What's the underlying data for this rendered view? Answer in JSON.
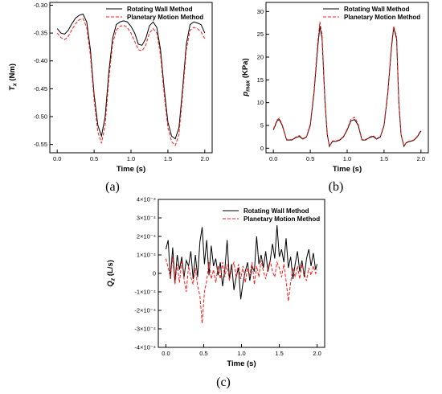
{
  "chart_data": [
    {
      "type": "line",
      "panel_label": "(a)",
      "xlabel": "Time (s)",
      "ylabel": "T",
      "ylabel_sub": "x",
      "ylabel_unit": " (Nm)",
      "xlim": [
        -0.1,
        2.1
      ],
      "ylim": [
        -0.565,
        -0.295
      ],
      "xticks": [
        0.0,
        0.5,
        1.0,
        1.5,
        2.0
      ],
      "xtick_labels": [
        "0.0",
        "0.5",
        "1.0",
        "1.5",
        "2.0"
      ],
      "yticks": [
        -0.3,
        -0.35,
        -0.4,
        -0.45,
        -0.5,
        -0.55
      ],
      "ytick_labels": [
        "-0.30",
        "-0.35",
        "-0.40",
        "-0.45",
        "-0.50",
        "-0.55"
      ],
      "legend_position": "top-right",
      "series": [
        {
          "name": "Rotating Wall Method",
          "color": "#000000",
          "style": "solid",
          "x": [
            0,
            0.05,
            0.1,
            0.15,
            0.2,
            0.25,
            0.3,
            0.35,
            0.4,
            0.45,
            0.5,
            0.55,
            0.6,
            0.65,
            0.7,
            0.75,
            0.8,
            0.85,
            0.9,
            0.95,
            1.0,
            1.05,
            1.1,
            1.15,
            1.2,
            1.25,
            1.3,
            1.35,
            1.4,
            1.45,
            1.5,
            1.55,
            1.6,
            1.65,
            1.7,
            1.75,
            1.8,
            1.85,
            1.9,
            1.95,
            2.0
          ],
          "y": [
            -0.342,
            -0.35,
            -0.352,
            -0.345,
            -0.333,
            -0.323,
            -0.318,
            -0.316,
            -0.33,
            -0.38,
            -0.46,
            -0.515,
            -0.535,
            -0.5,
            -0.42,
            -0.36,
            -0.335,
            -0.33,
            -0.328,
            -0.33,
            -0.338,
            -0.35,
            -0.37,
            -0.372,
            -0.36,
            -0.337,
            -0.33,
            -0.34,
            -0.38,
            -0.45,
            -0.51,
            -0.535,
            -0.54,
            -0.52,
            -0.45,
            -0.37,
            -0.335,
            -0.33,
            -0.332,
            -0.335,
            -0.35
          ]
        },
        {
          "name": "Planetary Motion Method",
          "color": "#ff1a1a",
          "style": "dashed",
          "x": [
            0,
            0.05,
            0.1,
            0.15,
            0.2,
            0.25,
            0.3,
            0.35,
            0.4,
            0.45,
            0.5,
            0.55,
            0.6,
            0.65,
            0.7,
            0.75,
            0.8,
            0.85,
            0.9,
            0.95,
            1.0,
            1.05,
            1.1,
            1.15,
            1.2,
            1.25,
            1.3,
            1.35,
            1.4,
            1.45,
            1.5,
            1.55,
            1.6,
            1.65,
            1.7,
            1.75,
            1.8,
            1.85,
            1.9,
            1.95,
            2.0
          ],
          "y": [
            -0.35,
            -0.358,
            -0.362,
            -0.356,
            -0.344,
            -0.333,
            -0.326,
            -0.324,
            -0.34,
            -0.39,
            -0.47,
            -0.527,
            -0.548,
            -0.515,
            -0.432,
            -0.37,
            -0.345,
            -0.338,
            -0.336,
            -0.34,
            -0.35,
            -0.365,
            -0.38,
            -0.382,
            -0.372,
            -0.35,
            -0.342,
            -0.35,
            -0.39,
            -0.46,
            -0.52,
            -0.545,
            -0.552,
            -0.532,
            -0.46,
            -0.38,
            -0.345,
            -0.34,
            -0.342,
            -0.348,
            -0.36
          ]
        }
      ]
    },
    {
      "type": "line",
      "panel_label": "(b)",
      "xlabel": "Time (s)",
      "ylabel": "p",
      "ylabel_sub": "max",
      "ylabel_unit": " (KPa)",
      "xlim": [
        -0.1,
        2.1
      ],
      "ylim": [
        -1,
        32
      ],
      "xticks": [
        0.0,
        0.5,
        1.0,
        1.5,
        2.0
      ],
      "xtick_labels": [
        "0.0",
        "0.5",
        "1.0",
        "1.5",
        "2.0"
      ],
      "yticks": [
        0,
        5,
        10,
        15,
        20,
        25,
        30
      ],
      "ytick_labels": [
        "0",
        "5",
        "10",
        "15",
        "20",
        "25",
        "30"
      ],
      "legend_position": "top-right",
      "series": [
        {
          "name": "Rotating Wall Method",
          "color": "#000000",
          "style": "solid",
          "x": [
            0,
            0.05,
            0.08,
            0.12,
            0.18,
            0.25,
            0.3,
            0.35,
            0.4,
            0.45,
            0.5,
            0.55,
            0.6,
            0.63,
            0.66,
            0.7,
            0.73,
            0.76,
            0.8,
            0.85,
            0.9,
            0.95,
            1.0,
            1.05,
            1.1,
            1.15,
            1.2,
            1.25,
            1.3,
            1.35,
            1.4,
            1.45,
            1.5,
            1.55,
            1.6,
            1.63,
            1.67,
            1.7,
            1.73,
            1.77,
            1.8,
            1.85,
            1.9,
            1.95,
            2.0
          ],
          "y": [
            4,
            6,
            6.3,
            5,
            1.8,
            1.8,
            2.3,
            2.6,
            2,
            2.5,
            5,
            12,
            22,
            26.8,
            24,
            10,
            3,
            0.4,
            1.5,
            1.5,
            1.8,
            2.5,
            4,
            6,
            6.3,
            5,
            1.8,
            1.8,
            2.3,
            2.6,
            2,
            2.5,
            5,
            12,
            22,
            26.5,
            24,
            10,
            3,
            0.4,
            1.2,
            1.5,
            1.7,
            2.5,
            3.8
          ]
        },
        {
          "name": "Planetary Motion Method",
          "color": "#ff1a1a",
          "style": "dashed",
          "x": [
            0,
            0.05,
            0.08,
            0.12,
            0.18,
            0.25,
            0.3,
            0.35,
            0.4,
            0.45,
            0.5,
            0.55,
            0.6,
            0.63,
            0.66,
            0.7,
            0.73,
            0.76,
            0.8,
            0.85,
            0.9,
            0.95,
            1.0,
            1.05,
            1.1,
            1.15,
            1.2,
            1.25,
            1.3,
            1.35,
            1.4,
            1.45,
            1.5,
            1.55,
            1.6,
            1.63,
            1.67,
            1.7,
            1.73,
            1.77,
            1.8,
            1.85,
            1.9,
            1.95,
            2.0
          ],
          "y": [
            4.2,
            6.2,
            6.6,
            5.2,
            1.9,
            1.9,
            2.4,
            2.8,
            2.1,
            2.6,
            5.3,
            12.5,
            23,
            27.8,
            24.8,
            10.5,
            3.2,
            0.5,
            1.6,
            1.6,
            1.9,
            2.6,
            4.2,
            6.3,
            6.8,
            5.3,
            1.9,
            1.9,
            2.4,
            2.8,
            2.1,
            2.6,
            5.2,
            12.4,
            22.6,
            26.8,
            24.4,
            10.2,
            3.1,
            0.5,
            1.3,
            1.6,
            1.8,
            2.6,
            4
          ]
        }
      ]
    },
    {
      "type": "line",
      "panel_label": "(c)",
      "xlabel": "Time (s)",
      "ylabel": "Q",
      "ylabel_sub": "z",
      "ylabel_unit": " (L/s)",
      "xlim": [
        -0.1,
        2.1
      ],
      "ylim": [
        -0.0004,
        0.0004
      ],
      "xticks": [
        0.0,
        0.5,
        1.0,
        1.5,
        2.0
      ],
      "xtick_labels": [
        "0.0",
        "0.5",
        "1.0",
        "1.5",
        "2.0"
      ],
      "yticks": [
        0.0004,
        0.0003,
        0.0002,
        0.0001,
        0,
        -0.0001,
        -0.0002,
        -0.0003,
        -0.0004
      ],
      "ytick_labels": [
        "4×10⁻⁴",
        "3×10⁻⁴",
        "2×10⁻⁴",
        "1×10⁻⁴",
        "0",
        "-1×10⁻⁴",
        "-2×10⁻⁴",
        "-3×10⁻⁴",
        "-4×10⁻⁴"
      ],
      "legend_position": "top-right",
      "series": [
        {
          "name": "Rotating Wall Method",
          "color": "#000000",
          "style": "solid",
          "x": [
            0,
            0.03,
            0.06,
            0.09,
            0.12,
            0.15,
            0.18,
            0.21,
            0.24,
            0.27,
            0.3,
            0.33,
            0.36,
            0.39,
            0.42,
            0.45,
            0.48,
            0.51,
            0.54,
            0.57,
            0.6,
            0.63,
            0.66,
            0.69,
            0.72,
            0.75,
            0.78,
            0.81,
            0.84,
            0.87,
            0.9,
            0.93,
            0.96,
            0.99,
            1.02,
            1.05,
            1.08,
            1.11,
            1.14,
            1.17,
            1.2,
            1.23,
            1.26,
            1.29,
            1.32,
            1.35,
            1.38,
            1.41,
            1.44,
            1.47,
            1.5,
            1.53,
            1.56,
            1.59,
            1.62,
            1.65,
            1.68,
            1.71,
            1.74,
            1.77,
            1.8,
            1.83,
            1.86,
            1.89,
            1.92,
            1.95,
            1.98,
            2.0
          ],
          "y": [
            0.00013,
            0.00018,
            -3e-05,
            0.00014,
            -5e-05,
            0.0001,
            2e-05,
            9e-05,
            -2e-05,
            7e-05,
            4e-05,
            0.00012,
            -3e-05,
            0.0001,
            -2e-05,
            0.00017,
            0.00025,
            5e-05,
            0.00018,
            -1e-05,
            0.00015,
            4e-05,
            8e-05,
            -1e-05,
            6e-05,
            -7e-05,
            2e-05,
            0.00018,
            -3e-05,
            5e-05,
            -9e-05,
            -2e-05,
            3e-05,
            -0.00014,
            -5e-05,
            1e-05,
            6e-05,
            -4e-05,
            4e-05,
            1e-05,
            0.0002,
            5e-05,
            0.0001,
            3e-05,
            0.00012,
            1e-05,
            7e-05,
            0.00016,
            8e-05,
            0.00026,
            9e-05,
            0.00013,
            6e-05,
            0.00019,
            3e-05,
            9e-05,
            -3e-05,
            5e-05,
            0.00012,
            1e-05,
            7e-05,
            -2e-05,
            8e-05,
            0.00013,
            4e-05,
            0.00011,
            2e-05,
            5e-05
          ]
        },
        {
          "name": "Planetary Motion Method",
          "color": "#ff1a1a",
          "style": "dashed",
          "x": [
            0,
            0.03,
            0.06,
            0.09,
            0.12,
            0.15,
            0.18,
            0.21,
            0.24,
            0.27,
            0.3,
            0.33,
            0.36,
            0.39,
            0.42,
            0.45,
            0.48,
            0.51,
            0.54,
            0.57,
            0.6,
            0.63,
            0.66,
            0.69,
            0.72,
            0.75,
            0.78,
            0.81,
            0.84,
            0.87,
            0.9,
            0.93,
            0.96,
            0.99,
            1.02,
            1.05,
            1.08,
            1.11,
            1.14,
            1.17,
            1.2,
            1.23,
            1.26,
            1.29,
            1.32,
            1.35,
            1.38,
            1.41,
            1.44,
            1.47,
            1.5,
            1.53,
            1.56,
            1.59,
            1.62,
            1.65,
            1.68,
            1.71,
            1.74,
            1.77,
            1.8,
            1.83,
            1.86,
            1.89,
            1.92,
            1.95,
            1.98,
            2.0
          ],
          "y": [
            8e-05,
            3e-05,
            -2e-05,
            9e-05,
            -6e-05,
            5e-05,
            -5e-05,
            7e-05,
            -3e-05,
            -0.0001,
            4e-05,
            -2e-05,
            -6e-05,
            3e-05,
            -7e-05,
            -0.00012,
            -0.00027,
            -0.0001,
            -4e-05,
            6e-05,
            -3e-05,
            2e-05,
            -5e-05,
            4e-05,
            -3e-05,
            6e-05,
            -2e-05,
            5e-05,
            -4e-05,
            3e-05,
            6e-05,
            -2e-05,
            5e-05,
            -3e-05,
            4e-05,
            -5e-05,
            3e-05,
            -1e-05,
            6e-05,
            -6e-05,
            4e-05,
            -2e-05,
            7e-05,
            1e-05,
            -3e-05,
            3e-05,
            7e-05,
            1e-05,
            -2e-05,
            6e-05,
            3e-05,
            -2e-05,
            5e-05,
            -4e-05,
            -0.00015,
            -5e-05,
            3e-05,
            -2e-05,
            4e-05,
            -3e-05,
            5e-05,
            0.0,
            -4e-05,
            3e-05,
            -1e-05,
            4e-05,
            0.0,
            2e-05
          ]
        }
      ]
    }
  ]
}
